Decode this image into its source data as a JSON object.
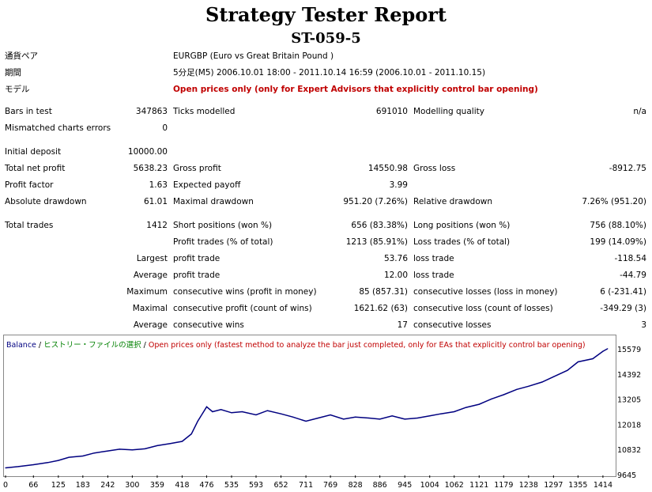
{
  "report": {
    "title": "Strategy Tester Report",
    "subtitle": "ST-059-5"
  },
  "info": [
    {
      "label": "通貨ペア",
      "value": "EURGBP (Euro vs Great Britain Pound )"
    },
    {
      "label": "期間",
      "value": "5分足(M5) 2006.10.01 18:00 - 2011.10.14 16:59 (2006.10.01 - 2011.10.15)"
    },
    {
      "label": "モデル",
      "value": "Open prices only (only for Expert Advisors that explicitly control bar opening)"
    }
  ],
  "stats": {
    "bars_in_test": {
      "label": "Bars in test",
      "value": "347863"
    },
    "ticks_modelled": {
      "label": "Ticks modelled",
      "value": "691010"
    },
    "modelling_quality": {
      "label": "Modelling quality",
      "value": "n/a"
    },
    "mismatched": {
      "label": "Mismatched charts errors",
      "value": "0"
    },
    "initial_deposit": {
      "label": "Initial deposit",
      "value": "10000.00"
    },
    "total_net_profit": {
      "label": "Total net profit",
      "value": "5638.23"
    },
    "gross_profit": {
      "label": "Gross profit",
      "value": "14550.98"
    },
    "gross_loss": {
      "label": "Gross loss",
      "value": "-8912.75"
    },
    "profit_factor": {
      "label": "Profit factor",
      "value": "1.63"
    },
    "expected_payoff": {
      "label": "Expected payoff",
      "value": "3.99"
    },
    "absolute_drawdown": {
      "label": "Absolute drawdown",
      "value": "61.01"
    },
    "maximal_drawdown": {
      "label": "Maximal drawdown",
      "value": "951.20 (7.26%)"
    },
    "relative_drawdown": {
      "label": "Relative drawdown",
      "value": "7.26% (951.20)"
    },
    "total_trades": {
      "label": "Total trades",
      "value": "1412"
    },
    "short_positions": {
      "label": "Short positions (won %)",
      "value": "656 (83.38%)"
    },
    "long_positions": {
      "label": "Long positions (won %)",
      "value": "756 (88.10%)"
    },
    "profit_trades": {
      "label": "Profit trades (% of total)",
      "value": "1213 (85.91%)"
    },
    "loss_trades": {
      "label": "Loss trades (% of total)",
      "value": "199 (14.09%)"
    },
    "largest_label": "Largest",
    "largest_profit": {
      "label": "profit trade",
      "value": "53.76"
    },
    "largest_loss": {
      "label": "loss trade",
      "value": "-118.54"
    },
    "average_label": "Average",
    "average_profit": {
      "label": "profit trade",
      "value": "12.00"
    },
    "average_loss": {
      "label": "loss trade",
      "value": "-44.79"
    },
    "maximum_label": "Maximum",
    "max_cons_wins": {
      "label": "consecutive wins (profit in money)",
      "value": "85 (857.31)"
    },
    "max_cons_losses": {
      "label": "consecutive losses (loss in money)",
      "value": "6 (-231.41)"
    },
    "maximal_label": "Maximal",
    "maximal_cons_profit": {
      "label": "consecutive profit (count of wins)",
      "value": "1621.62 (63)"
    },
    "maximal_cons_loss": {
      "label": "consecutive loss (count of losses)",
      "value": "-349.29 (3)"
    },
    "average2_label": "Average",
    "avg_cons_wins": {
      "label": "consecutive wins",
      "value": "17"
    },
    "avg_cons_losses": {
      "label": "consecutive losses",
      "value": "3"
    }
  },
  "legend": {
    "balance": "Balance",
    "sep1": " / ",
    "history": "ヒストリー・ファイルの選択",
    "sep2": " / ",
    "model": "Open prices only (fastest method to analyze the bar just completed, only for EAs that explicitly control bar opening)"
  },
  "colors": {
    "balance_line": "#000080",
    "history_text": "#008000",
    "model_text": "#c00000",
    "accent_red": "#c00000"
  },
  "chart_data": {
    "type": "line",
    "series": [
      {
        "name": "Balance",
        "x": [
          0,
          30,
          66,
          100,
          125,
          150,
          183,
          210,
          242,
          270,
          300,
          330,
          359,
          390,
          418,
          440,
          455,
          476,
          490,
          510,
          535,
          560,
          593,
          620,
          652,
          680,
          711,
          740,
          769,
          800,
          828,
          860,
          886,
          915,
          945,
          975,
          1004,
          1030,
          1062,
          1090,
          1121,
          1150,
          1179,
          1210,
          1238,
          1270,
          1297,
          1330,
          1355,
          1390,
          1414,
          1425
        ],
        "values": [
          10000,
          10060,
          10150,
          10250,
          10350,
          10500,
          10560,
          10700,
          10800,
          10880,
          10850,
          10900,
          11050,
          11150,
          11250,
          11600,
          12200,
          12880,
          12650,
          12750,
          12600,
          12650,
          12500,
          12700,
          12550,
          12400,
          12200,
          12350,
          12500,
          12300,
          12400,
          12350,
          12300,
          12450,
          12300,
          12350,
          12450,
          12550,
          12650,
          12850,
          13000,
          13250,
          13450,
          13700,
          13850,
          14050,
          14300,
          14600,
          15000,
          15150,
          15500,
          15620
        ]
      }
    ],
    "y_ticks": [
      9645,
      10832,
      12018,
      13205,
      14392,
      15579
    ],
    "x_ticks": [
      0,
      66,
      125,
      183,
      242,
      300,
      359,
      418,
      476,
      535,
      593,
      652,
      711,
      769,
      828,
      886,
      945,
      1004,
      1062,
      1121,
      1179,
      1238,
      1297,
      1355,
      1414
    ],
    "ylim": [
      9645,
      15579
    ],
    "xlim": [
      0,
      1431
    ],
    "title": "",
    "xlabel": "",
    "ylabel": "",
    "grid": false
  }
}
